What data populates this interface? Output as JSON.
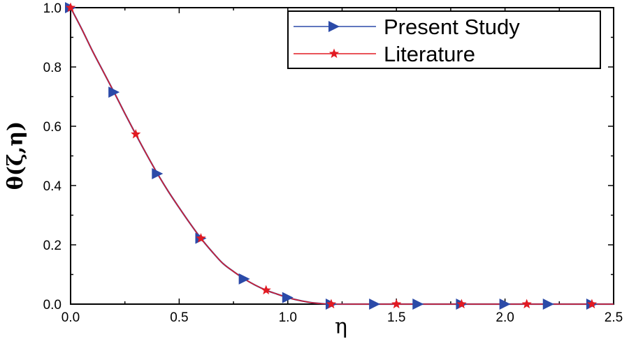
{
  "chart_data": {
    "type": "line",
    "xlabel": "η",
    "ylabel": "θ(ζ,η)",
    "xlim": [
      0.0,
      2.5
    ],
    "ylim": [
      0.0,
      1.0
    ],
    "xticks": [
      "0.0",
      "0.5",
      "1.0",
      "1.5",
      "2.0",
      "2.5"
    ],
    "yticks": [
      "0.0",
      "0.2",
      "0.4",
      "0.6",
      "0.8",
      "1.0"
    ],
    "grid": false,
    "legend_position": "top-right",
    "curve": {
      "x": [
        0.0,
        0.05,
        0.1,
        0.15,
        0.2,
        0.25,
        0.3,
        0.35,
        0.4,
        0.45,
        0.5,
        0.55,
        0.6,
        0.65,
        0.7,
        0.75,
        0.8,
        0.85,
        0.9,
        0.95,
        1.0,
        1.05,
        1.1,
        1.15,
        1.2,
        1.3,
        1.4,
        1.6,
        1.8,
        2.0,
        2.2,
        2.4,
        2.5
      ],
      "y": [
        1.0,
        0.93,
        0.855,
        0.785,
        0.715,
        0.643,
        0.573,
        0.505,
        0.44,
        0.38,
        0.325,
        0.272,
        0.222,
        0.178,
        0.138,
        0.11,
        0.085,
        0.064,
        0.047,
        0.034,
        0.022,
        0.013,
        0.006,
        0.002,
        0.0,
        0.0,
        0.0,
        0.0,
        0.0,
        0.0,
        0.0,
        0.0,
        0.0
      ]
    },
    "series": [
      {
        "name": "Present Study",
        "color": "#2b4aa8",
        "marker": "triangle-right",
        "x": [
          0.0,
          0.2,
          0.4,
          0.6,
          0.8,
          1.0,
          1.2,
          1.4,
          1.6,
          1.8,
          2.0,
          2.2,
          2.4
        ],
        "y": [
          1.0,
          0.715,
          0.44,
          0.222,
          0.085,
          0.022,
          0.0,
          0.0,
          0.0,
          0.0,
          0.0,
          0.0,
          0.0
        ]
      },
      {
        "name": "Literature",
        "color": "#e21a22",
        "marker": "star",
        "x": [
          0.0,
          0.3,
          0.6,
          0.9,
          1.2,
          1.5,
          1.8,
          2.1,
          2.4
        ],
        "y": [
          1.0,
          0.573,
          0.222,
          0.047,
          0.0,
          0.0,
          0.0,
          0.0,
          0.0
        ]
      }
    ]
  }
}
